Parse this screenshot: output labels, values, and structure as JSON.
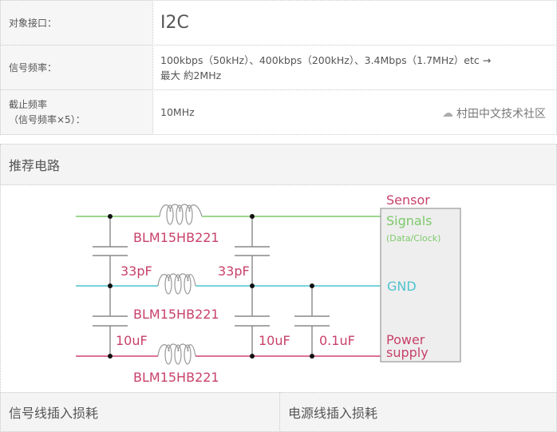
{
  "spec_table": {
    "rows": [
      {
        "label": "对象接口：",
        "value": "I2C"
      },
      {
        "label": "信号频率：",
        "value": "100kbps（50kHz）、400kbps（200kHz）、3.4Mbps（1.7MHz）etc →",
        "value2": "最大 約2MHz"
      },
      {
        "label": "截止频率",
        "label2": "（信号频率×5）：",
        "value": "10MHz"
      }
    ]
  },
  "watermark": "村田中文技术社区",
  "circuit": {
    "heading": "推荐电路",
    "inductor_label": "BLM15HB221",
    "cap_signal": "33pF",
    "cap_bulk": "10uF",
    "cap_bypass": "0.1uF",
    "sensor_title": "Sensor",
    "pin_signals": "Signals",
    "pin_signals_sub": "(Data/Clock)",
    "pin_gnd": "GND",
    "pin_power_1": "Power",
    "pin_power_2": "supply",
    "colors": {
      "signal": "#7dc96a",
      "gnd": "#4fc3cf",
      "power": "#d0436f",
      "label": "#c8416a"
    }
  },
  "bottom_headers": [
    "信号线插入损耗",
    "电源线插入损耗"
  ]
}
